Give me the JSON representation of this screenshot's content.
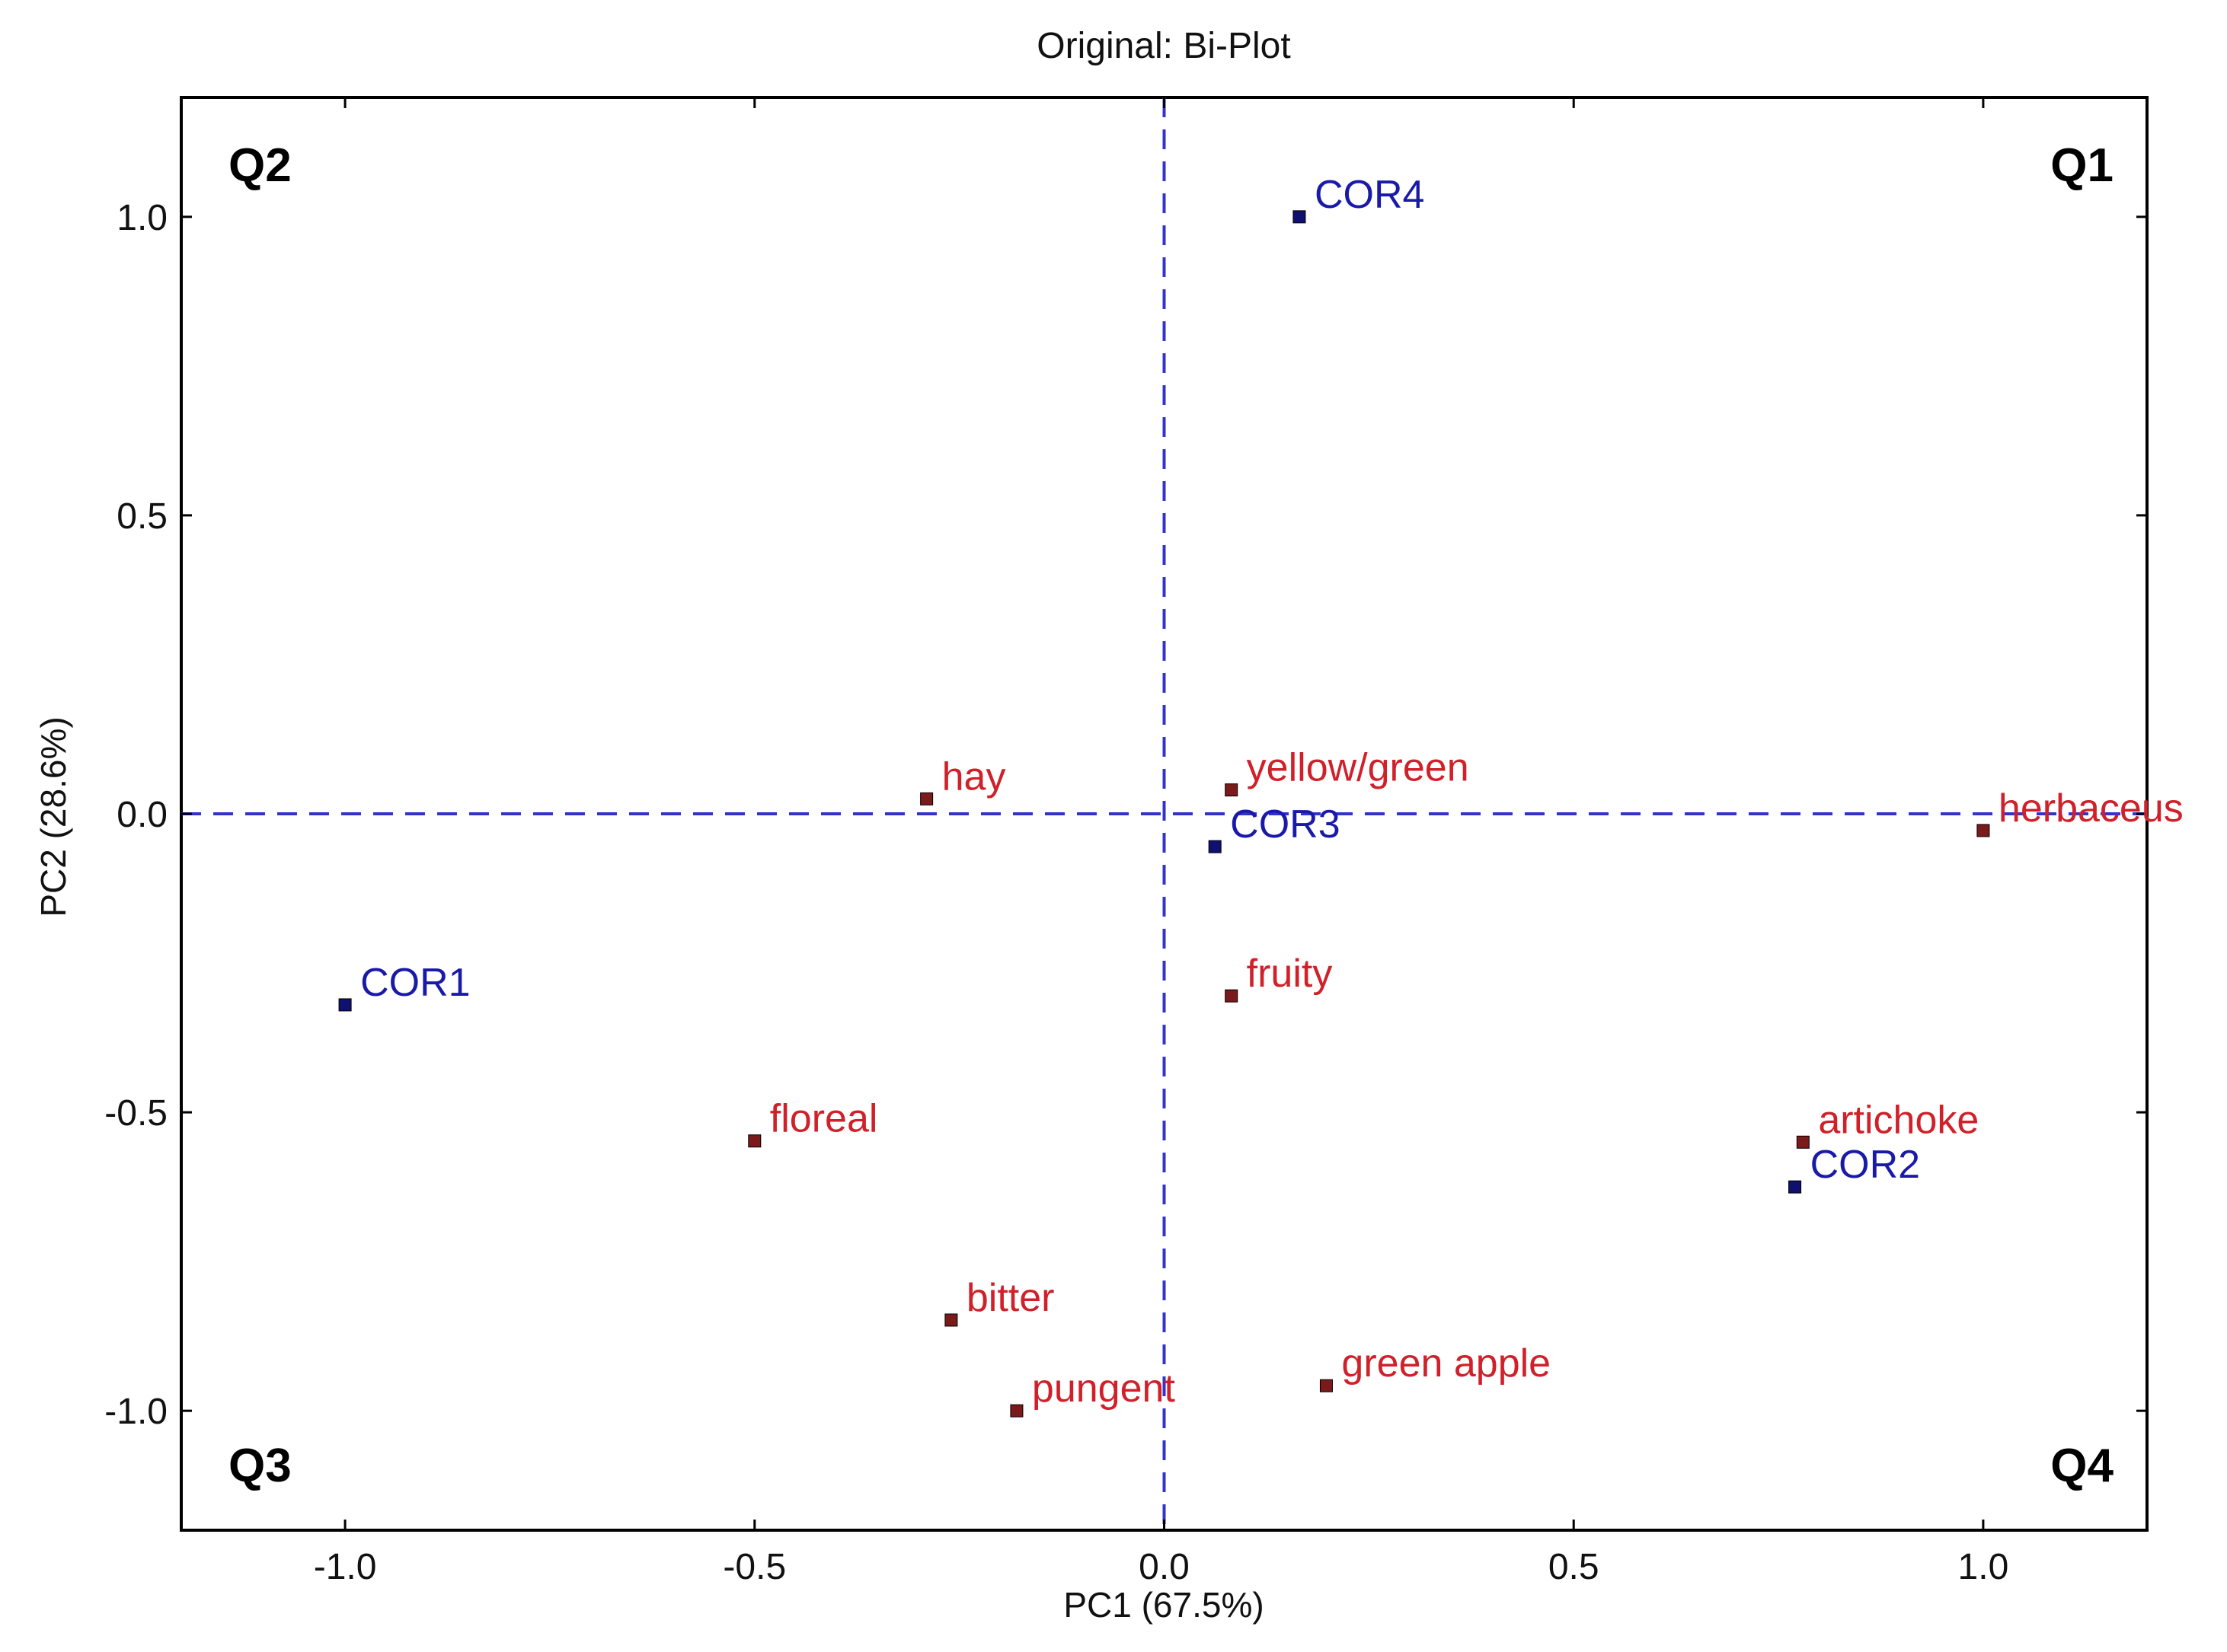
{
  "chart_data": {
    "type": "scatter",
    "title": "Original: Bi-Plot",
    "xlabel": "PC1 (67.5%)",
    "ylabel": "PC2 (28.6%)",
    "xlim": [
      -1.2,
      1.2
    ],
    "ylim": [
      -1.2,
      1.2
    ],
    "x_ticks": [
      -1.0,
      -0.5,
      0.0,
      0.5,
      1.0
    ],
    "y_ticks": [
      -1.0,
      -0.5,
      0.0,
      0.5,
      1.0
    ],
    "x_tick_labels": [
      "-1.0",
      "-0.5",
      "0.0",
      "0.5",
      "1.0"
    ],
    "y_tick_labels": [
      "-1.0",
      "-0.5",
      "0.0",
      "0.5",
      "1.0"
    ],
    "grid": false,
    "reference_lines": {
      "x": 0.0,
      "y": 0.0,
      "style": "dashed",
      "color": "#3333cc"
    },
    "quadrant_labels": [
      {
        "label": "Q1",
        "position": "top-right"
      },
      {
        "label": "Q2",
        "position": "top-left"
      },
      {
        "label": "Q3",
        "position": "bottom-left"
      },
      {
        "label": "Q4",
        "position": "bottom-right"
      }
    ],
    "series": [
      {
        "color": "#1a1aaa",
        "marker_color": "#101070",
        "points": [
          {
            "label": "COR4",
            "x": 0.165,
            "y": 1.0
          },
          {
            "label": "COR3",
            "x": 0.062,
            "y": -0.055
          },
          {
            "label": "COR1",
            "x": -1.0,
            "y": -0.32
          },
          {
            "label": "COR2",
            "x": 0.77,
            "y": -0.625
          }
        ]
      },
      {
        "color": "#d0202a",
        "marker_color": "#7a1a1a",
        "points": [
          {
            "label": "hay",
            "x": -0.29,
            "y": 0.025
          },
          {
            "label": "yellow/green",
            "x": 0.082,
            "y": 0.04
          },
          {
            "label": "herbaceus",
            "x": 1.0,
            "y": -0.028
          },
          {
            "label": "fruity",
            "x": 0.082,
            "y": -0.305
          },
          {
            "label": "floreal",
            "x": -0.5,
            "y": -0.548
          },
          {
            "label": "artichoke",
            "x": 0.78,
            "y": -0.55
          },
          {
            "label": "bitter",
            "x": -0.26,
            "y": -0.848
          },
          {
            "label": "pungent",
            "x": -0.18,
            "y": -1.0
          },
          {
            "label": "green apple",
            "x": 0.198,
            "y": -0.958
          }
        ]
      }
    ]
  }
}
